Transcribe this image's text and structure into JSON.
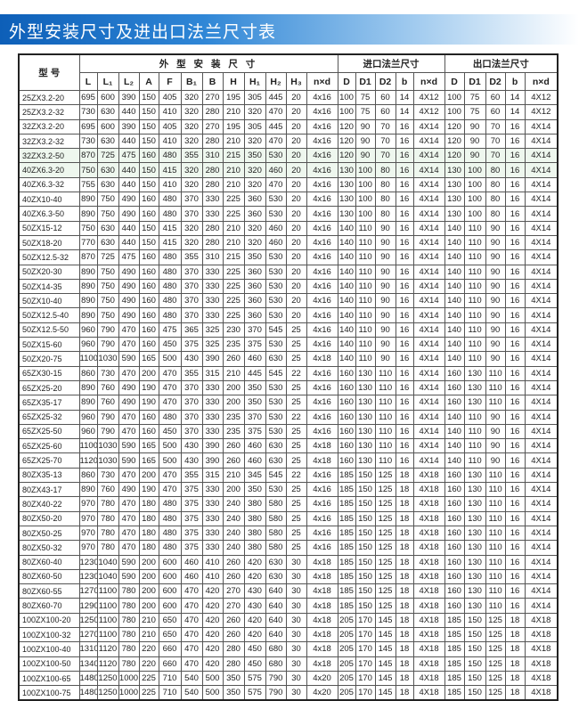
{
  "title": "外型安装尺寸及进出口法兰尺寸表",
  "table": {
    "model_header": "型 号",
    "group_headers": [
      "外 型 安 装 尺 寸",
      "进口法兰尺寸",
      "出口法兰尺寸"
    ],
    "columns": [
      "L",
      "L₁",
      "L₂",
      "A",
      "F",
      "B₁",
      "B",
      "H",
      "H₁",
      "H₂",
      "H₃",
      "n×d",
      "D",
      "D1",
      "D2",
      "b",
      "n×d",
      "D",
      "D1",
      "D2",
      "b",
      "n×d"
    ],
    "rows": [
      [
        "25ZX3.2-20",
        "695",
        "600",
        "390",
        "150",
        "405",
        "320",
        "270",
        "195",
        "305",
        "445",
        "20",
        "4x16",
        "100",
        "75",
        "60",
        "14",
        "4X12",
        "100",
        "75",
        "60",
        "14",
        "4X12"
      ],
      [
        "25ZX3.2-32",
        "730",
        "630",
        "440",
        "150",
        "410",
        "320",
        "280",
        "210",
        "320",
        "470",
        "20",
        "4x16",
        "100",
        "75",
        "60",
        "14",
        "4X12",
        "100",
        "75",
        "60",
        "14",
        "4X12"
      ],
      [
        "32ZX3.2-20",
        "695",
        "600",
        "390",
        "150",
        "405",
        "320",
        "270",
        "195",
        "305",
        "445",
        "20",
        "4x16",
        "120",
        "90",
        "70",
        "16",
        "4X14",
        "120",
        "90",
        "70",
        "16",
        "4X14"
      ],
      [
        "32ZX3.2-32",
        "730",
        "630",
        "440",
        "150",
        "410",
        "320",
        "280",
        "210",
        "320",
        "470",
        "20",
        "4x16",
        "120",
        "90",
        "70",
        "16",
        "4X14",
        "120",
        "90",
        "70",
        "16",
        "4X14"
      ],
      [
        "32ZX3.2-50",
        "870",
        "725",
        "475",
        "160",
        "480",
        "355",
        "310",
        "215",
        "350",
        "530",
        "20",
        "4x16",
        "120",
        "90",
        "70",
        "16",
        "4X14",
        "120",
        "90",
        "70",
        "16",
        "4X14"
      ],
      [
        "40ZX6.3-20",
        "750",
        "630",
        "440",
        "150",
        "415",
        "320",
        "280",
        "210",
        "320",
        "460",
        "20",
        "4x16",
        "130",
        "100",
        "80",
        "16",
        "4X14",
        "130",
        "100",
        "80",
        "16",
        "4X14"
      ],
      [
        "40ZX6.3-32",
        "755",
        "630",
        "440",
        "150",
        "410",
        "320",
        "280",
        "210",
        "320",
        "470",
        "20",
        "4x16",
        "130",
        "100",
        "80",
        "16",
        "4X14",
        "130",
        "100",
        "80",
        "16",
        "4X14"
      ],
      [
        "40ZX10-40",
        "890",
        "750",
        "490",
        "160",
        "480",
        "370",
        "330",
        "225",
        "360",
        "530",
        "20",
        "4x16",
        "130",
        "100",
        "80",
        "16",
        "4X14",
        "130",
        "100",
        "80",
        "16",
        "4X14"
      ],
      [
        "40ZX6.3-50",
        "890",
        "750",
        "490",
        "160",
        "480",
        "370",
        "330",
        "225",
        "360",
        "530",
        "20",
        "4x16",
        "130",
        "100",
        "80",
        "16",
        "4X14",
        "130",
        "100",
        "80",
        "16",
        "4X14"
      ],
      [
        "50ZX15-12",
        "750",
        "630",
        "440",
        "150",
        "415",
        "320",
        "280",
        "210",
        "320",
        "460",
        "20",
        "4x16",
        "140",
        "110",
        "90",
        "16",
        "4X14",
        "140",
        "110",
        "90",
        "16",
        "4X14"
      ],
      [
        "50ZX18-20",
        "770",
        "630",
        "440",
        "150",
        "415",
        "320",
        "280",
        "210",
        "320",
        "460",
        "20",
        "4x16",
        "140",
        "110",
        "90",
        "16",
        "4X14",
        "140",
        "110",
        "90",
        "16",
        "4X14"
      ],
      [
        "50ZX12.5-32",
        "870",
        "725",
        "475",
        "160",
        "480",
        "355",
        "310",
        "215",
        "350",
        "530",
        "20",
        "4x16",
        "140",
        "110",
        "90",
        "16",
        "4X14",
        "140",
        "110",
        "90",
        "16",
        "4X14"
      ],
      [
        "50ZX20-30",
        "890",
        "750",
        "490",
        "160",
        "480",
        "370",
        "330",
        "225",
        "360",
        "530",
        "20",
        "4x16",
        "140",
        "110",
        "90",
        "16",
        "4X14",
        "140",
        "110",
        "90",
        "16",
        "4X14"
      ],
      [
        "50ZX14-35",
        "890",
        "750",
        "490",
        "160",
        "480",
        "370",
        "330",
        "225",
        "360",
        "530",
        "20",
        "4x16",
        "140",
        "110",
        "90",
        "16",
        "4X14",
        "140",
        "110",
        "90",
        "16",
        "4X14"
      ],
      [
        "50ZX10-40",
        "890",
        "750",
        "490",
        "160",
        "480",
        "370",
        "330",
        "225",
        "360",
        "530",
        "20",
        "4x16",
        "140",
        "110",
        "90",
        "16",
        "4X14",
        "140",
        "110",
        "90",
        "16",
        "4X14"
      ],
      [
        "50ZX12.5-40",
        "890",
        "750",
        "490",
        "160",
        "480",
        "370",
        "330",
        "225",
        "360",
        "530",
        "20",
        "4x16",
        "140",
        "110",
        "90",
        "16",
        "4X14",
        "140",
        "110",
        "90",
        "16",
        "4X14"
      ],
      [
        "50ZX12.5-50",
        "960",
        "790",
        "470",
        "160",
        "475",
        "365",
        "325",
        "230",
        "370",
        "545",
        "25",
        "4x16",
        "140",
        "110",
        "90",
        "16",
        "4X14",
        "140",
        "110",
        "90",
        "16",
        "4X14"
      ],
      [
        "50ZX15-60",
        "960",
        "790",
        "470",
        "160",
        "450",
        "375",
        "325",
        "235",
        "375",
        "530",
        "25",
        "4x16",
        "140",
        "110",
        "90",
        "16",
        "4X14",
        "140",
        "110",
        "90",
        "16",
        "4X14"
      ],
      [
        "50ZX20-75",
        "1100",
        "1030",
        "590",
        "165",
        "500",
        "430",
        "390",
        "260",
        "460",
        "630",
        "25",
        "4x18",
        "140",
        "110",
        "90",
        "16",
        "4X14",
        "140",
        "110",
        "90",
        "16",
        "4X14"
      ],
      [
        "65ZX30-15",
        "860",
        "730",
        "470",
        "200",
        "470",
        "355",
        "315",
        "210",
        "445",
        "545",
        "22",
        "4x16",
        "160",
        "130",
        "110",
        "16",
        "4X14",
        "160",
        "130",
        "110",
        "16",
        "4X14"
      ],
      [
        "65ZX25-20",
        "890",
        "760",
        "490",
        "190",
        "470",
        "370",
        "330",
        "200",
        "350",
        "530",
        "25",
        "4x16",
        "160",
        "130",
        "110",
        "16",
        "4X14",
        "160",
        "130",
        "110",
        "16",
        "4X14"
      ],
      [
        "65ZX35-17",
        "890",
        "760",
        "490",
        "190",
        "470",
        "370",
        "330",
        "200",
        "350",
        "530",
        "25",
        "4x16",
        "160",
        "130",
        "110",
        "16",
        "4X14",
        "160",
        "130",
        "110",
        "16",
        "4X14"
      ],
      [
        "65ZX25-32",
        "960",
        "790",
        "470",
        "160",
        "480",
        "370",
        "330",
        "235",
        "370",
        "530",
        "22",
        "4x16",
        "160",
        "130",
        "110",
        "16",
        "4X14",
        "140",
        "110",
        "90",
        "16",
        "4X14"
      ],
      [
        "65ZX25-50",
        "960",
        "790",
        "470",
        "160",
        "450",
        "370",
        "330",
        "235",
        "375",
        "530",
        "25",
        "4x16",
        "160",
        "130",
        "110",
        "16",
        "4X14",
        "140",
        "110",
        "90",
        "16",
        "4X14"
      ],
      [
        "65ZX25-60",
        "1100",
        "1030",
        "590",
        "165",
        "500",
        "430",
        "390",
        "260",
        "460",
        "630",
        "25",
        "4x18",
        "160",
        "130",
        "110",
        "16",
        "4X14",
        "140",
        "110",
        "90",
        "16",
        "4X14"
      ],
      [
        "65ZX25-70",
        "1120",
        "1030",
        "590",
        "165",
        "500",
        "430",
        "390",
        "260",
        "460",
        "630",
        "25",
        "4x18",
        "160",
        "130",
        "110",
        "16",
        "4X14",
        "140",
        "110",
        "90",
        "16",
        "4X14"
      ],
      [
        "80ZX35-13",
        "860",
        "730",
        "470",
        "200",
        "470",
        "355",
        "315",
        "210",
        "345",
        "545",
        "22",
        "4x16",
        "185",
        "150",
        "125",
        "18",
        "4X18",
        "160",
        "130",
        "110",
        "16",
        "4X14"
      ],
      [
        "80ZX43-17",
        "890",
        "760",
        "490",
        "190",
        "470",
        "375",
        "330",
        "200",
        "350",
        "530",
        "25",
        "4x16",
        "185",
        "150",
        "125",
        "18",
        "4X18",
        "160",
        "130",
        "110",
        "16",
        "4X14"
      ],
      [
        "80ZX40-22",
        "970",
        "780",
        "470",
        "180",
        "480",
        "375",
        "330",
        "240",
        "380",
        "580",
        "25",
        "4x16",
        "185",
        "150",
        "125",
        "18",
        "4X18",
        "160",
        "130",
        "110",
        "16",
        "4X14"
      ],
      [
        "80ZX50-20",
        "970",
        "780",
        "470",
        "180",
        "480",
        "375",
        "330",
        "240",
        "380",
        "580",
        "25",
        "4x16",
        "185",
        "150",
        "125",
        "18",
        "4X18",
        "160",
        "130",
        "110",
        "16",
        "4X14"
      ],
      [
        "80ZX50-25",
        "970",
        "780",
        "470",
        "180",
        "480",
        "375",
        "330",
        "240",
        "380",
        "580",
        "25",
        "4x16",
        "185",
        "150",
        "125",
        "18",
        "4X18",
        "160",
        "130",
        "110",
        "16",
        "4X14"
      ],
      [
        "80ZX50-32",
        "970",
        "780",
        "470",
        "180",
        "480",
        "375",
        "330",
        "240",
        "380",
        "580",
        "25",
        "4x16",
        "185",
        "150",
        "125",
        "18",
        "4X18",
        "160",
        "130",
        "110",
        "16",
        "4X14"
      ],
      [
        "80ZX60-40",
        "1230",
        "1040",
        "590",
        "200",
        "600",
        "460",
        "410",
        "260",
        "420",
        "630",
        "30",
        "4x18",
        "185",
        "150",
        "125",
        "18",
        "4X18",
        "160",
        "130",
        "110",
        "16",
        "4X14"
      ],
      [
        "80ZX60-50",
        "1230",
        "1040",
        "590",
        "200",
        "600",
        "460",
        "410",
        "260",
        "420",
        "630",
        "30",
        "4x18",
        "185",
        "150",
        "125",
        "18",
        "4X18",
        "160",
        "130",
        "110",
        "16",
        "4X14"
      ],
      [
        "80ZX60-55",
        "1270",
        "1100",
        "780",
        "200",
        "600",
        "470",
        "420",
        "270",
        "430",
        "640",
        "30",
        "4x18",
        "185",
        "150",
        "125",
        "18",
        "4X18",
        "160",
        "130",
        "110",
        "16",
        "4X14"
      ],
      [
        "80ZX60-70",
        "1290",
        "1100",
        "780",
        "200",
        "600",
        "470",
        "420",
        "270",
        "430",
        "640",
        "30",
        "4x18",
        "185",
        "150",
        "125",
        "18",
        "4X18",
        "160",
        "130",
        "110",
        "16",
        "4X14"
      ],
      [
        "100ZX100-20",
        "1250",
        "1100",
        "780",
        "210",
        "650",
        "470",
        "420",
        "260",
        "420",
        "640",
        "30",
        "4x18",
        "205",
        "170",
        "145",
        "18",
        "4X18",
        "185",
        "150",
        "125",
        "18",
        "4X18"
      ],
      [
        "100ZX100-32",
        "1270",
        "1100",
        "780",
        "210",
        "650",
        "470",
        "420",
        "260",
        "420",
        "640",
        "30",
        "4x18",
        "205",
        "170",
        "145",
        "18",
        "4X18",
        "185",
        "150",
        "125",
        "18",
        "4X18"
      ],
      [
        "100ZX100-40",
        "1310",
        "1120",
        "780",
        "220",
        "660",
        "470",
        "420",
        "280",
        "450",
        "680",
        "30",
        "4x18",
        "205",
        "170",
        "145",
        "18",
        "4X18",
        "185",
        "150",
        "125",
        "18",
        "4X18"
      ],
      [
        "100ZX100-50",
        "1340",
        "1120",
        "780",
        "220",
        "660",
        "470",
        "420",
        "280",
        "450",
        "680",
        "30",
        "4x18",
        "205",
        "170",
        "145",
        "18",
        "4X18",
        "185",
        "150",
        "125",
        "18",
        "4X18"
      ],
      [
        "100ZX100-65",
        "1480",
        "1250",
        "1000",
        "225",
        "710",
        "540",
        "500",
        "350",
        "575",
        "790",
        "30",
        "4x20",
        "205",
        "170",
        "145",
        "18",
        "4X18",
        "185",
        "150",
        "125",
        "18",
        "4X18"
      ],
      [
        "100ZX100-75",
        "1480",
        "1250",
        "1000",
        "225",
        "710",
        "540",
        "500",
        "350",
        "575",
        "790",
        "30",
        "4x20",
        "205",
        "170",
        "145",
        "18",
        "4X18",
        "185",
        "150",
        "125",
        "18",
        "4X18"
      ]
    ]
  }
}
